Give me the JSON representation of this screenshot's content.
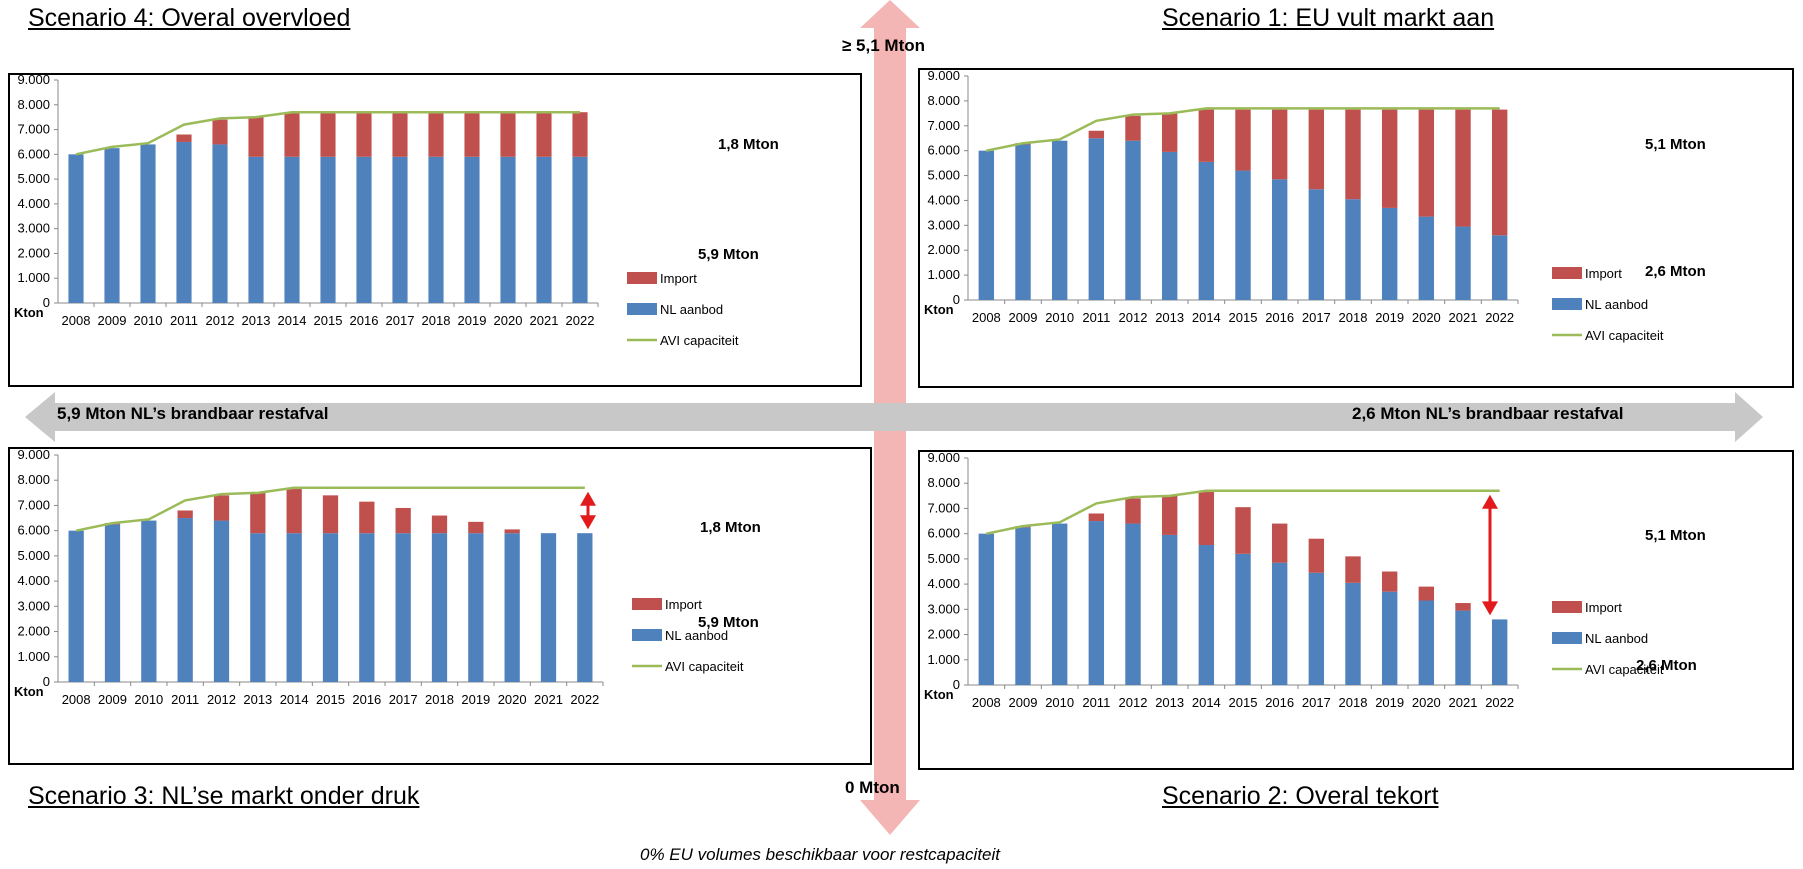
{
  "titles": {
    "s4": "Scenario 4: Overal overvloed",
    "s1": "Scenario 1: EU vult markt aan",
    "s3": "Scenario  3: NL’se markt onder druk",
    "s2": "Scenario 2: Overal tekort"
  },
  "axis_labels": {
    "top": "≥ 5,1 Mton",
    "bottom": "0 Mton",
    "left": "5,9 Mton NL’s brandbaar restafval",
    "right": "2,6 Mton NL’s brandbaar restafval",
    "footer": "0% EU volumes beschikbaar voor restcapaciteit"
  },
  "colors": {
    "import": "#C0504D",
    "nl": "#4F81BD",
    "avi": "#9BBB59",
    "vertical_arrow": "#F4B6B4",
    "horizontal_arrow": "#C8C8C8",
    "annotation_arrow": "#E31A1C"
  },
  "chart_data": [
    {
      "id": "s4",
      "type": "bar",
      "stacked": true,
      "categories": [
        "2008",
        "2009",
        "2010",
        "2011",
        "2012",
        "2013",
        "2014",
        "2015",
        "2016",
        "2017",
        "2018",
        "2019",
        "2020",
        "2021",
        "2022"
      ],
      "series": [
        {
          "name": "NL aanbod",
          "values": [
            6000,
            6250,
            6400,
            6500,
            6400,
            5900,
            5900,
            5900,
            5900,
            5900,
            5900,
            5900,
            5900,
            5900,
            5900
          ]
        },
        {
          "name": "Import",
          "values": [
            0,
            0,
            0,
            300,
            1000,
            1600,
            1800,
            1800,
            1800,
            1800,
            1800,
            1800,
            1800,
            1800,
            1800
          ]
        },
        {
          "name": "AVI capaciteit",
          "type": "line",
          "values": [
            6000,
            6300,
            6450,
            7200,
            7450,
            7500,
            7700,
            7700,
            7700,
            7700,
            7700,
            7700,
            7700,
            7700,
            7700
          ]
        }
      ],
      "yticks": [
        "0",
        "1.000",
        "2.000",
        "3.000",
        "4.000",
        "5.000",
        "6.000",
        "7.000",
        "8.000",
        "9.000"
      ],
      "ylim": [
        0,
        9000
      ],
      "ylabel": "Kton",
      "legend": [
        "Import",
        "NL aanbod",
        "AVI capaciteit"
      ],
      "annotations": [
        "1,8 Mton",
        "5,9 Mton"
      ],
      "arrow": false
    },
    {
      "id": "s1",
      "type": "bar",
      "stacked": true,
      "categories": [
        "2008",
        "2009",
        "2010",
        "2011",
        "2012",
        "2013",
        "2014",
        "2015",
        "2016",
        "2017",
        "2018",
        "2019",
        "2020",
        "2021",
        "2022"
      ],
      "series": [
        {
          "name": "NL aanbod",
          "values": [
            6000,
            6250,
            6400,
            6500,
            6400,
            5950,
            5550,
            5200,
            4850,
            4450,
            4050,
            3700,
            3350,
            2950,
            2600
          ]
        },
        {
          "name": "Import",
          "values": [
            0,
            50,
            0,
            300,
            1000,
            1550,
            2100,
            2450,
            2800,
            3200,
            3600,
            3950,
            4300,
            4700,
            5050
          ]
        },
        {
          "name": "AVI capaciteit",
          "type": "line",
          "values": [
            6000,
            6300,
            6450,
            7200,
            7450,
            7500,
            7700,
            7700,
            7700,
            7700,
            7700,
            7700,
            7700,
            7700,
            7700
          ]
        }
      ],
      "yticks": [
        "0",
        "1.000",
        "2.000",
        "3.000",
        "4.000",
        "5.000",
        "6.000",
        "7.000",
        "8.000",
        "9.000"
      ],
      "ylim": [
        0,
        9000
      ],
      "ylabel": "Kton",
      "legend": [
        "Import",
        "NL aanbod",
        "AVI capaciteit"
      ],
      "annotations": [
        "5,1 Mton",
        "2,6 Mton"
      ],
      "arrow": false
    },
    {
      "id": "s3",
      "type": "bar",
      "stacked": true,
      "categories": [
        "2008",
        "2009",
        "2010",
        "2011",
        "2012",
        "2013",
        "2014",
        "2015",
        "2016",
        "2017",
        "2018",
        "2019",
        "2020",
        "2021",
        "2022"
      ],
      "series": [
        {
          "name": "NL aanbod",
          "values": [
            6000,
            6250,
            6400,
            6500,
            6400,
            5900,
            5900,
            5900,
            5900,
            5900,
            5900,
            5900,
            5900,
            5900,
            5900
          ]
        },
        {
          "name": "Import",
          "values": [
            0,
            50,
            0,
            300,
            1000,
            1600,
            1750,
            1500,
            1250,
            1000,
            700,
            450,
            150,
            0,
            0
          ]
        },
        {
          "name": "AVI capaciteit",
          "type": "line",
          "values": [
            6000,
            6300,
            6450,
            7200,
            7450,
            7500,
            7700,
            7700,
            7700,
            7700,
            7700,
            7700,
            7700,
            7700,
            7700
          ]
        }
      ],
      "yticks": [
        "0",
        "1.000",
        "2.000",
        "3.000",
        "4.000",
        "5.000",
        "6.000",
        "7.000",
        "8.000",
        "9.000"
      ],
      "ylim": [
        0,
        9000
      ],
      "ylabel": "Kton",
      "legend": [
        "Import",
        "NL aanbod",
        "AVI capaciteit"
      ],
      "annotations": [
        "1,8 Mton",
        "5,9 Mton"
      ],
      "arrow": true
    },
    {
      "id": "s2",
      "type": "bar",
      "stacked": true,
      "categories": [
        "2008",
        "2009",
        "2010",
        "2011",
        "2012",
        "2013",
        "2014",
        "2015",
        "2016",
        "2017",
        "2018",
        "2019",
        "2020",
        "2021",
        "2022"
      ],
      "series": [
        {
          "name": "NL aanbod",
          "values": [
            6000,
            6250,
            6400,
            6500,
            6400,
            5950,
            5550,
            5200,
            4850,
            4450,
            4050,
            3700,
            3350,
            2950,
            2600
          ]
        },
        {
          "name": "Import",
          "values": [
            0,
            50,
            0,
            300,
            1000,
            1550,
            2100,
            1850,
            1550,
            1350,
            1050,
            800,
            550,
            300,
            0
          ]
        },
        {
          "name": "AVI capaciteit",
          "type": "line",
          "values": [
            6000,
            6300,
            6450,
            7200,
            7450,
            7500,
            7700,
            7700,
            7700,
            7700,
            7700,
            7700,
            7700,
            7700,
            7700
          ]
        }
      ],
      "yticks": [
        "0",
        "1.000",
        "2.000",
        "3.000",
        "4.000",
        "5.000",
        "6.000",
        "7.000",
        "8.000",
        "9.000"
      ],
      "ylim": [
        0,
        9000
      ],
      "ylabel": "Kton",
      "legend": [
        "Import",
        "NL aanbod",
        "AVI capaciteit"
      ],
      "annotations": [
        "5,1 Mton",
        "2,6 Mton"
      ],
      "arrow": true
    }
  ]
}
